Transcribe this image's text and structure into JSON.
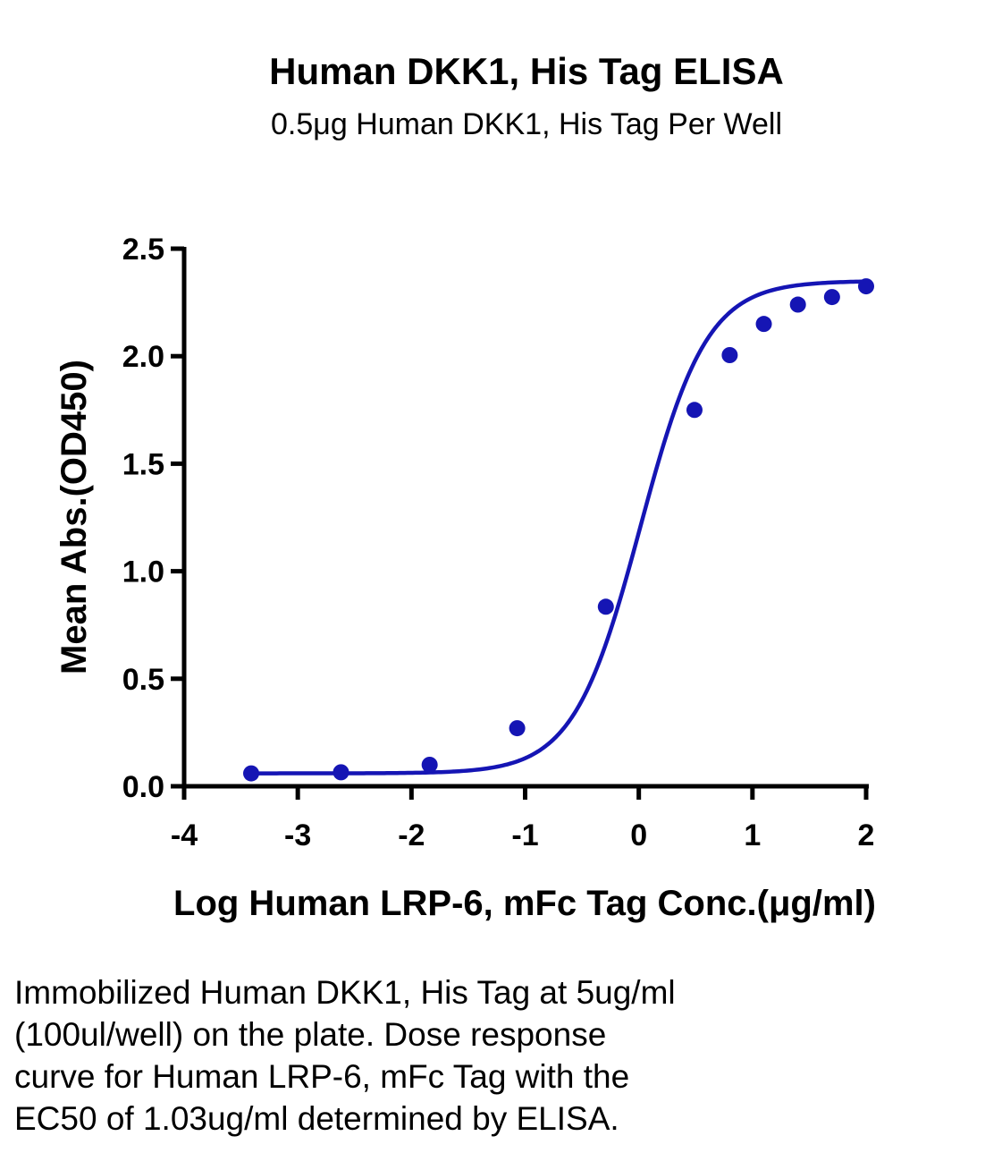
{
  "chart_data": {
    "type": "line",
    "title": "Human DKK1, His Tag ELISA",
    "subtitle": "0.5μg Human DKK1, His Tag Per Well",
    "xlabel": "Log Human LRP-6, mFc Tag Conc.(μg/ml)",
    "ylabel": "Mean Abs.(OD450)",
    "xlim": [
      -4,
      2
    ],
    "ylim": [
      0,
      2.5
    ],
    "x_ticks": [
      -4,
      -3,
      -2,
      -1,
      0,
      1,
      2
    ],
    "x_tick_labels": [
      "-4",
      "-3",
      "-2",
      "-1",
      "0",
      "1",
      "2"
    ],
    "y_ticks": [
      0,
      0.5,
      1.0,
      1.5,
      2.0,
      2.5
    ],
    "y_tick_labels": [
      "0.0",
      "0.5",
      "1.0",
      "1.5",
      "2.0",
      "2.5"
    ],
    "grid": false,
    "series": [
      {
        "color": "#1515b4",
        "points": [
          {
            "x": -3.41,
            "y": 0.06
          },
          {
            "x": -2.62,
            "y": 0.065
          },
          {
            "x": -1.84,
            "y": 0.1
          },
          {
            "x": -1.07,
            "y": 0.27
          },
          {
            "x": -0.29,
            "y": 0.835
          },
          {
            "x": 0.49,
            "y": 1.75
          },
          {
            "x": 0.8,
            "y": 2.005
          },
          {
            "x": 1.1,
            "y": 2.15
          },
          {
            "x": 1.4,
            "y": 2.24
          },
          {
            "x": 1.7,
            "y": 2.275
          },
          {
            "x": 2.0,
            "y": 2.325
          }
        ],
        "fit": {
          "bottom": 0.06,
          "top": 2.35,
          "logEC50": 0.013,
          "hill": 1.48
        }
      }
    ]
  },
  "caption": {
    "lines": [
      "Immobilized Human DKK1, His Tag at 5ug/ml",
      "(100ul/well) on the plate. Dose response",
      "curve for Human LRP-6, mFc Tag with the",
      "EC50 of 1.03ug/ml determined by ELISA."
    ]
  }
}
